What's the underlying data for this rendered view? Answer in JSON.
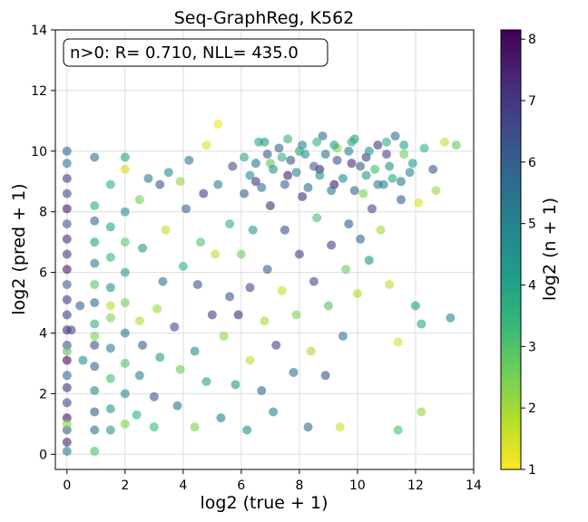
{
  "chart_data": {
    "type": "scatter",
    "title": "Seq-GraphReg, K562",
    "xlabel": "log2 (true + 1)",
    "ylabel": "log2 (pred + 1)",
    "xlim": [
      -0.4,
      14
    ],
    "ylim": [
      -0.5,
      14
    ],
    "xticks": [
      "0",
      "2",
      "4",
      "6",
      "8",
      "10",
      "12",
      "14"
    ],
    "yticks": [
      "0",
      "2",
      "4",
      "6",
      "8",
      "10",
      "12",
      "14"
    ],
    "grid": true,
    "annotation": "n>0: R= 0.710, NLL= 435.0",
    "annotation_position": "top-left",
    "colorbar": {
      "label": "log2 (n + 1)",
      "colormap": "viridis",
      "range": [
        1,
        8.15
      ],
      "ticks": [
        "1",
        "2",
        "3",
        "4",
        "5",
        "6",
        "7",
        "8"
      ]
    },
    "colors": {
      "viridis": [
        "#fde725",
        "#b5de2b",
        "#6ece58",
        "#35b779",
        "#1f9e89",
        "#26828e",
        "#31688e",
        "#3e4989",
        "#482878",
        "#440154"
      ],
      "grid": "#dddddd"
    },
    "point_alpha": 0.6,
    "points": [
      [
        0,
        0.1,
        5.2
      ],
      [
        0,
        0.4,
        7.4
      ],
      [
        0,
        0.8,
        6.1
      ],
      [
        0,
        1.2,
        7.8
      ],
      [
        0,
        1.7,
        6.6
      ],
      [
        0,
        2.2,
        7.2
      ],
      [
        0,
        2.6,
        5.6
      ],
      [
        0,
        3.1,
        7.9
      ],
      [
        0,
        3.6,
        6.3
      ],
      [
        0,
        4.1,
        7.5
      ],
      [
        0,
        4.6,
        6.8
      ],
      [
        0,
        5.1,
        7.1
      ],
      [
        0,
        5.6,
        5.9
      ],
      [
        0,
        6.1,
        7.6
      ],
      [
        0,
        6.6,
        6.9
      ],
      [
        0,
        7.1,
        7.3
      ],
      [
        0,
        7.6,
        6.2
      ],
      [
        0,
        8.1,
        7.7
      ],
      [
        0,
        8.6,
        6.5
      ],
      [
        0,
        9.1,
        7.0
      ],
      [
        0,
        9.6,
        5.4
      ],
      [
        0,
        10.0,
        6.0
      ],
      [
        0,
        1.0,
        2.3
      ],
      [
        0,
        3.4,
        3.0
      ],
      [
        0.15,
        4.1,
        6.4
      ],
      [
        0.45,
        4.9,
        6.0
      ],
      [
        0.55,
        3.1,
        4.6
      ],
      [
        0.95,
        0.1,
        3.1
      ],
      [
        0.95,
        0.8,
        5.5
      ],
      [
        0.95,
        1.4,
        6.2
      ],
      [
        0.95,
        2.1,
        4.8
      ],
      [
        0.95,
        2.9,
        5.9
      ],
      [
        0.95,
        3.6,
        6.4
      ],
      [
        0.95,
        4.3,
        3.6
      ],
      [
        0.95,
        5.0,
        5.7
      ],
      [
        0.95,
        5.6,
        2.9
      ],
      [
        0.95,
        6.3,
        5.2
      ],
      [
        0.95,
        7.0,
        4.1
      ],
      [
        0.95,
        7.7,
        5.8
      ],
      [
        0.95,
        8.2,
        3.7
      ],
      [
        0.95,
        9.8,
        5.5
      ],
      [
        0.95,
        3.9,
        2.5
      ],
      [
        1.5,
        1.5,
        4.3
      ],
      [
        1.5,
        2.5,
        3.2
      ],
      [
        1.5,
        3.5,
        5.1
      ],
      [
        1.5,
        4.5,
        2.4
      ],
      [
        1.5,
        5.5,
        4.6
      ],
      [
        1.5,
        6.5,
        3.4
      ],
      [
        1.5,
        7.5,
        4.0
      ],
      [
        1.5,
        8.9,
        3.6
      ],
      [
        1.5,
        0.8,
        4.4
      ],
      [
        1.5,
        4.9,
        1.8
      ],
      [
        2.0,
        1.0,
        2.4
      ],
      [
        2.0,
        2.0,
        4.8
      ],
      [
        2.0,
        3.0,
        3.1
      ],
      [
        2.0,
        4.0,
        5.3
      ],
      [
        2.0,
        5.0,
        2.6
      ],
      [
        2.0,
        6.0,
        4.2
      ],
      [
        2.0,
        7.0,
        2.8
      ],
      [
        2.0,
        8.0,
        4.5
      ],
      [
        2.0,
        9.4,
        1.6
      ],
      [
        2.0,
        9.8,
        4.1
      ],
      [
        2.4,
        1.3,
        3.6
      ],
      [
        2.5,
        2.6,
        5.0
      ],
      [
        2.5,
        4.4,
        1.9
      ],
      [
        2.6,
        6.8,
        4.4
      ],
      [
        2.5,
        8.4,
        2.6
      ],
      [
        2.8,
        9.1,
        5.2
      ],
      [
        2.6,
        3.6,
        6.1
      ],
      [
        3.0,
        0.9,
        3.3
      ],
      [
        3.0,
        1.9,
        6.3
      ],
      [
        3.2,
        3.2,
        4.2
      ],
      [
        3.1,
        4.8,
        2.1
      ],
      [
        3.3,
        5.7,
        5.6
      ],
      [
        3.4,
        7.4,
        1.7
      ],
      [
        3.2,
        8.9,
        6.2
      ],
      [
        3.5,
        9.3,
        4.7
      ],
      [
        3.8,
        1.6,
        5.4
      ],
      [
        3.9,
        2.8,
        2.7
      ],
      [
        3.7,
        4.2,
        6.6
      ],
      [
        4.0,
        6.2,
        3.5
      ],
      [
        4.1,
        8.1,
        5.9
      ],
      [
        3.9,
        9.0,
        2.2
      ],
      [
        4.2,
        9.7,
        5.3
      ],
      [
        4.4,
        0.9,
        2.5
      ],
      [
        4.4,
        3.4,
        4.6
      ],
      [
        4.5,
        5.6,
        6.4
      ],
      [
        4.6,
        7.0,
        3.0
      ],
      [
        4.7,
        8.6,
        6.8
      ],
      [
        4.8,
        10.2,
        1.4
      ],
      [
        4.8,
        2.4,
        4.1
      ],
      [
        5.0,
        4.6,
        6.9
      ],
      [
        5.1,
        6.6,
        1.8
      ],
      [
        5.2,
        8.9,
        5.0
      ],
      [
        5.2,
        10.9,
        1.2
      ],
      [
        5.3,
        1.2,
        5.2
      ],
      [
        5.4,
        3.9,
        2.3
      ],
      [
        5.6,
        5.2,
        6.2
      ],
      [
        5.6,
        7.6,
        3.6
      ],
      [
        5.7,
        9.5,
        6.5
      ],
      [
        5.8,
        2.3,
        4.4
      ],
      [
        5.9,
        4.6,
        7.3
      ],
      [
        6.0,
        6.6,
        2.6
      ],
      [
        6.1,
        8.6,
        6.1
      ],
      [
        6.2,
        0.8,
        4.6
      ],
      [
        6.3,
        3.1,
        1.7
      ],
      [
        6.3,
        5.5,
        6.6
      ],
      [
        6.4,
        7.4,
        4.3
      ],
      [
        6.5,
        9.0,
        7.1
      ],
      [
        6.6,
        10.3,
        3.9
      ],
      [
        6.7,
        2.1,
        5.8
      ],
      [
        6.8,
        4.4,
        2.0
      ],
      [
        6.9,
        6.1,
        6.0
      ],
      [
        7.0,
        8.2,
        7.4
      ],
      [
        7.0,
        9.6,
        2.9
      ],
      [
        7.1,
        1.4,
        4.9
      ],
      [
        7.2,
        3.6,
        6.7
      ],
      [
        7.4,
        5.4,
        1.6
      ],
      [
        7.5,
        7.4,
        6.4
      ],
      [
        7.6,
        9.2,
        7.6
      ],
      [
        7.6,
        10.4,
        3.4
      ],
      [
        7.8,
        2.7,
        5.5
      ],
      [
        7.9,
        4.6,
        2.4
      ],
      [
        8.0,
        6.6,
        6.9
      ],
      [
        8.1,
        8.5,
        7.2
      ],
      [
        8.2,
        9.9,
        4.6
      ],
      [
        8.3,
        0.9,
        5.7
      ],
      [
        8.4,
        3.4,
        1.9
      ],
      [
        8.5,
        5.7,
        6.5
      ],
      [
        8.6,
        7.8,
        3.2
      ],
      [
        8.7,
        9.4,
        7.5
      ],
      [
        8.8,
        10.5,
        5.6
      ],
      [
        8.9,
        2.6,
        6.3
      ],
      [
        9.0,
        4.9,
        3.0
      ],
      [
        9.1,
        6.9,
        6.8
      ],
      [
        9.2,
        8.9,
        7.7
      ],
      [
        9.3,
        10.1,
        2.2
      ],
      [
        9.4,
        0.9,
        1.6
      ],
      [
        9.5,
        3.9,
        5.4
      ],
      [
        9.6,
        6.1,
        2.7
      ],
      [
        9.7,
        7.6,
        6.2
      ],
      [
        9.8,
        9.6,
        7.3
      ],
      [
        9.9,
        10.4,
        4.1
      ],
      [
        10.0,
        5.3,
        1.9
      ],
      [
        10.1,
        7.1,
        5.9
      ],
      [
        10.2,
        8.6,
        2.5
      ],
      [
        10.3,
        9.8,
        7.0
      ],
      [
        10.4,
        6.4,
        4.5
      ],
      [
        10.5,
        8.1,
        6.6
      ],
      [
        10.6,
        9.4,
        3.3
      ],
      [
        10.7,
        10.2,
        7.1
      ],
      [
        10.8,
        7.4,
        2.0
      ],
      [
        10.9,
        8.9,
        5.1
      ],
      [
        11.0,
        9.9,
        6.7
      ],
      [
        11.1,
        5.6,
        1.8
      ],
      [
        11.2,
        9.1,
        3.9
      ],
      [
        11.3,
        10.5,
        5.7
      ],
      [
        11.4,
        3.7,
        1.5
      ],
      [
        11.4,
        0.8,
        3.1
      ],
      [
        11.5,
        8.4,
        6.1
      ],
      [
        11.6,
        9.9,
        2.6
      ],
      [
        11.8,
        9.3,
        4.8
      ],
      [
        12.0,
        4.9,
        4.4
      ],
      [
        12.1,
        8.3,
        1.4
      ],
      [
        12.2,
        1.4,
        2.2
      ],
      [
        12.3,
        10.1,
        3.5
      ],
      [
        12.2,
        4.3,
        4.0
      ],
      [
        12.6,
        9.4,
        6.2
      ],
      [
        12.7,
        8.7,
        2.1
      ],
      [
        13.0,
        10.3,
        1.7
      ],
      [
        13.2,
        4.5,
        4.9
      ],
      [
        13.4,
        10.2,
        2.8
      ],
      [
        6.5,
        9.6,
        5.4
      ],
      [
        6.9,
        9.9,
        6.1
      ],
      [
        7.3,
        10.1,
        5.8
      ],
      [
        7.7,
        9.7,
        6.3
      ],
      [
        8.1,
        10.2,
        5.2
      ],
      [
        8.5,
        9.5,
        6.0
      ],
      [
        8.9,
        9.9,
        5.5
      ],
      [
        9.3,
        9.7,
        6.4
      ],
      [
        9.7,
        10.0,
        5.0
      ],
      [
        10.1,
        9.5,
        6.1
      ],
      [
        6.3,
        9.2,
        4.8
      ],
      [
        6.7,
        8.8,
        5.6
      ],
      [
        7.1,
        9.4,
        4.6
      ],
      [
        7.5,
        8.9,
        5.9
      ],
      [
        7.9,
        9.3,
        4.9
      ],
      [
        8.3,
        8.8,
        5.7
      ],
      [
        8.7,
        9.2,
        4.5
      ],
      [
        9.1,
        8.7,
        5.3
      ],
      [
        9.5,
        9.1,
        4.7
      ],
      [
        9.9,
        8.7,
        5.8
      ],
      [
        10.3,
        9.2,
        4.4
      ],
      [
        10.7,
        8.9,
        5.2
      ],
      [
        11.1,
        9.5,
        4.6
      ],
      [
        11.5,
        9.0,
        5.4
      ],
      [
        11.9,
        9.6,
        4.2
      ],
      [
        6.1,
        9.8,
        3.9
      ],
      [
        6.8,
        10.3,
        4.4
      ],
      [
        7.4,
        9.8,
        3.6
      ],
      [
        8.0,
        10.0,
        4.0
      ],
      [
        8.6,
        10.3,
        3.5
      ],
      [
        9.2,
        10.2,
        4.2
      ],
      [
        9.8,
        10.3,
        3.8
      ],
      [
        10.4,
        10.0,
        4.3
      ],
      [
        11.0,
        10.3,
        3.7
      ],
      [
        11.6,
        10.2,
        4.1
      ]
    ]
  }
}
